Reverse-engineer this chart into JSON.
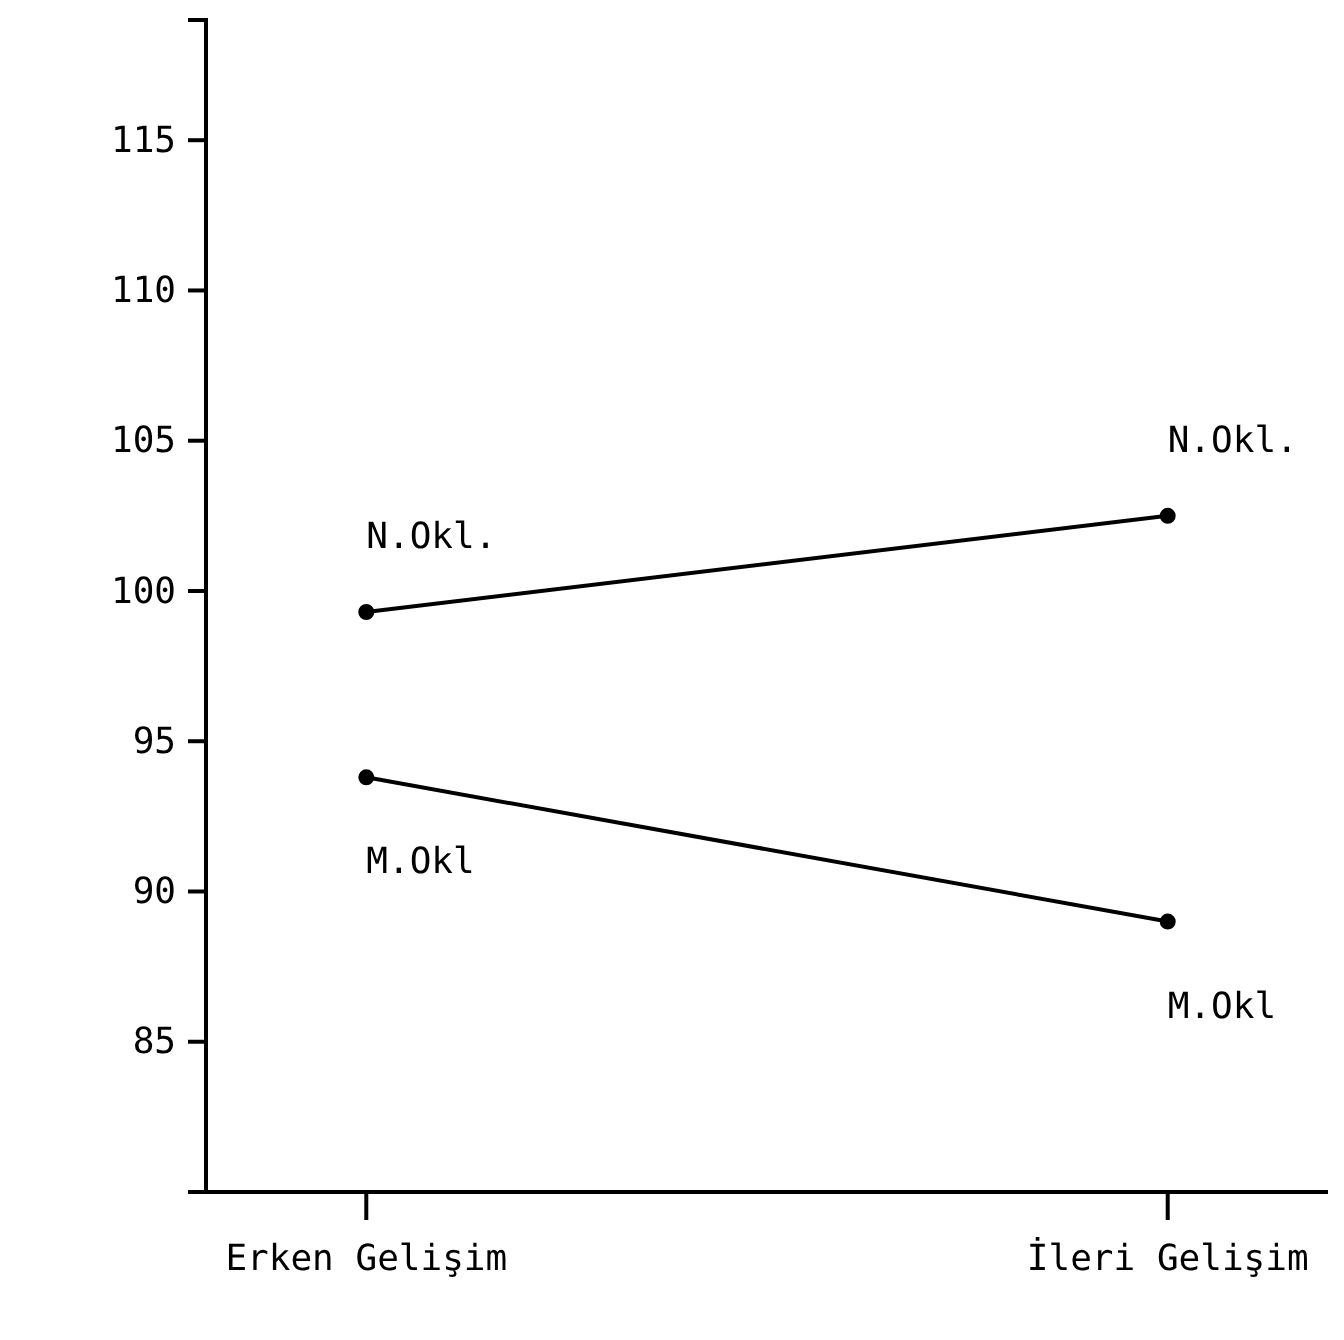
{
  "chart_data": {
    "type": "line",
    "categories": [
      "Erken Gelişim",
      "İleri Gelişim"
    ],
    "series": [
      {
        "name": "N.Okl.",
        "color": "#000000",
        "values": [
          99.3,
          102.5
        ]
      },
      {
        "name": "M.Okl",
        "color": "#000000",
        "values": [
          93.8,
          89
        ]
      }
    ],
    "ylim": [
      80,
      119
    ],
    "yticks": [
      85,
      90,
      95,
      100,
      105,
      110,
      115
    ],
    "marker": "circle",
    "line_style": "solid"
  }
}
